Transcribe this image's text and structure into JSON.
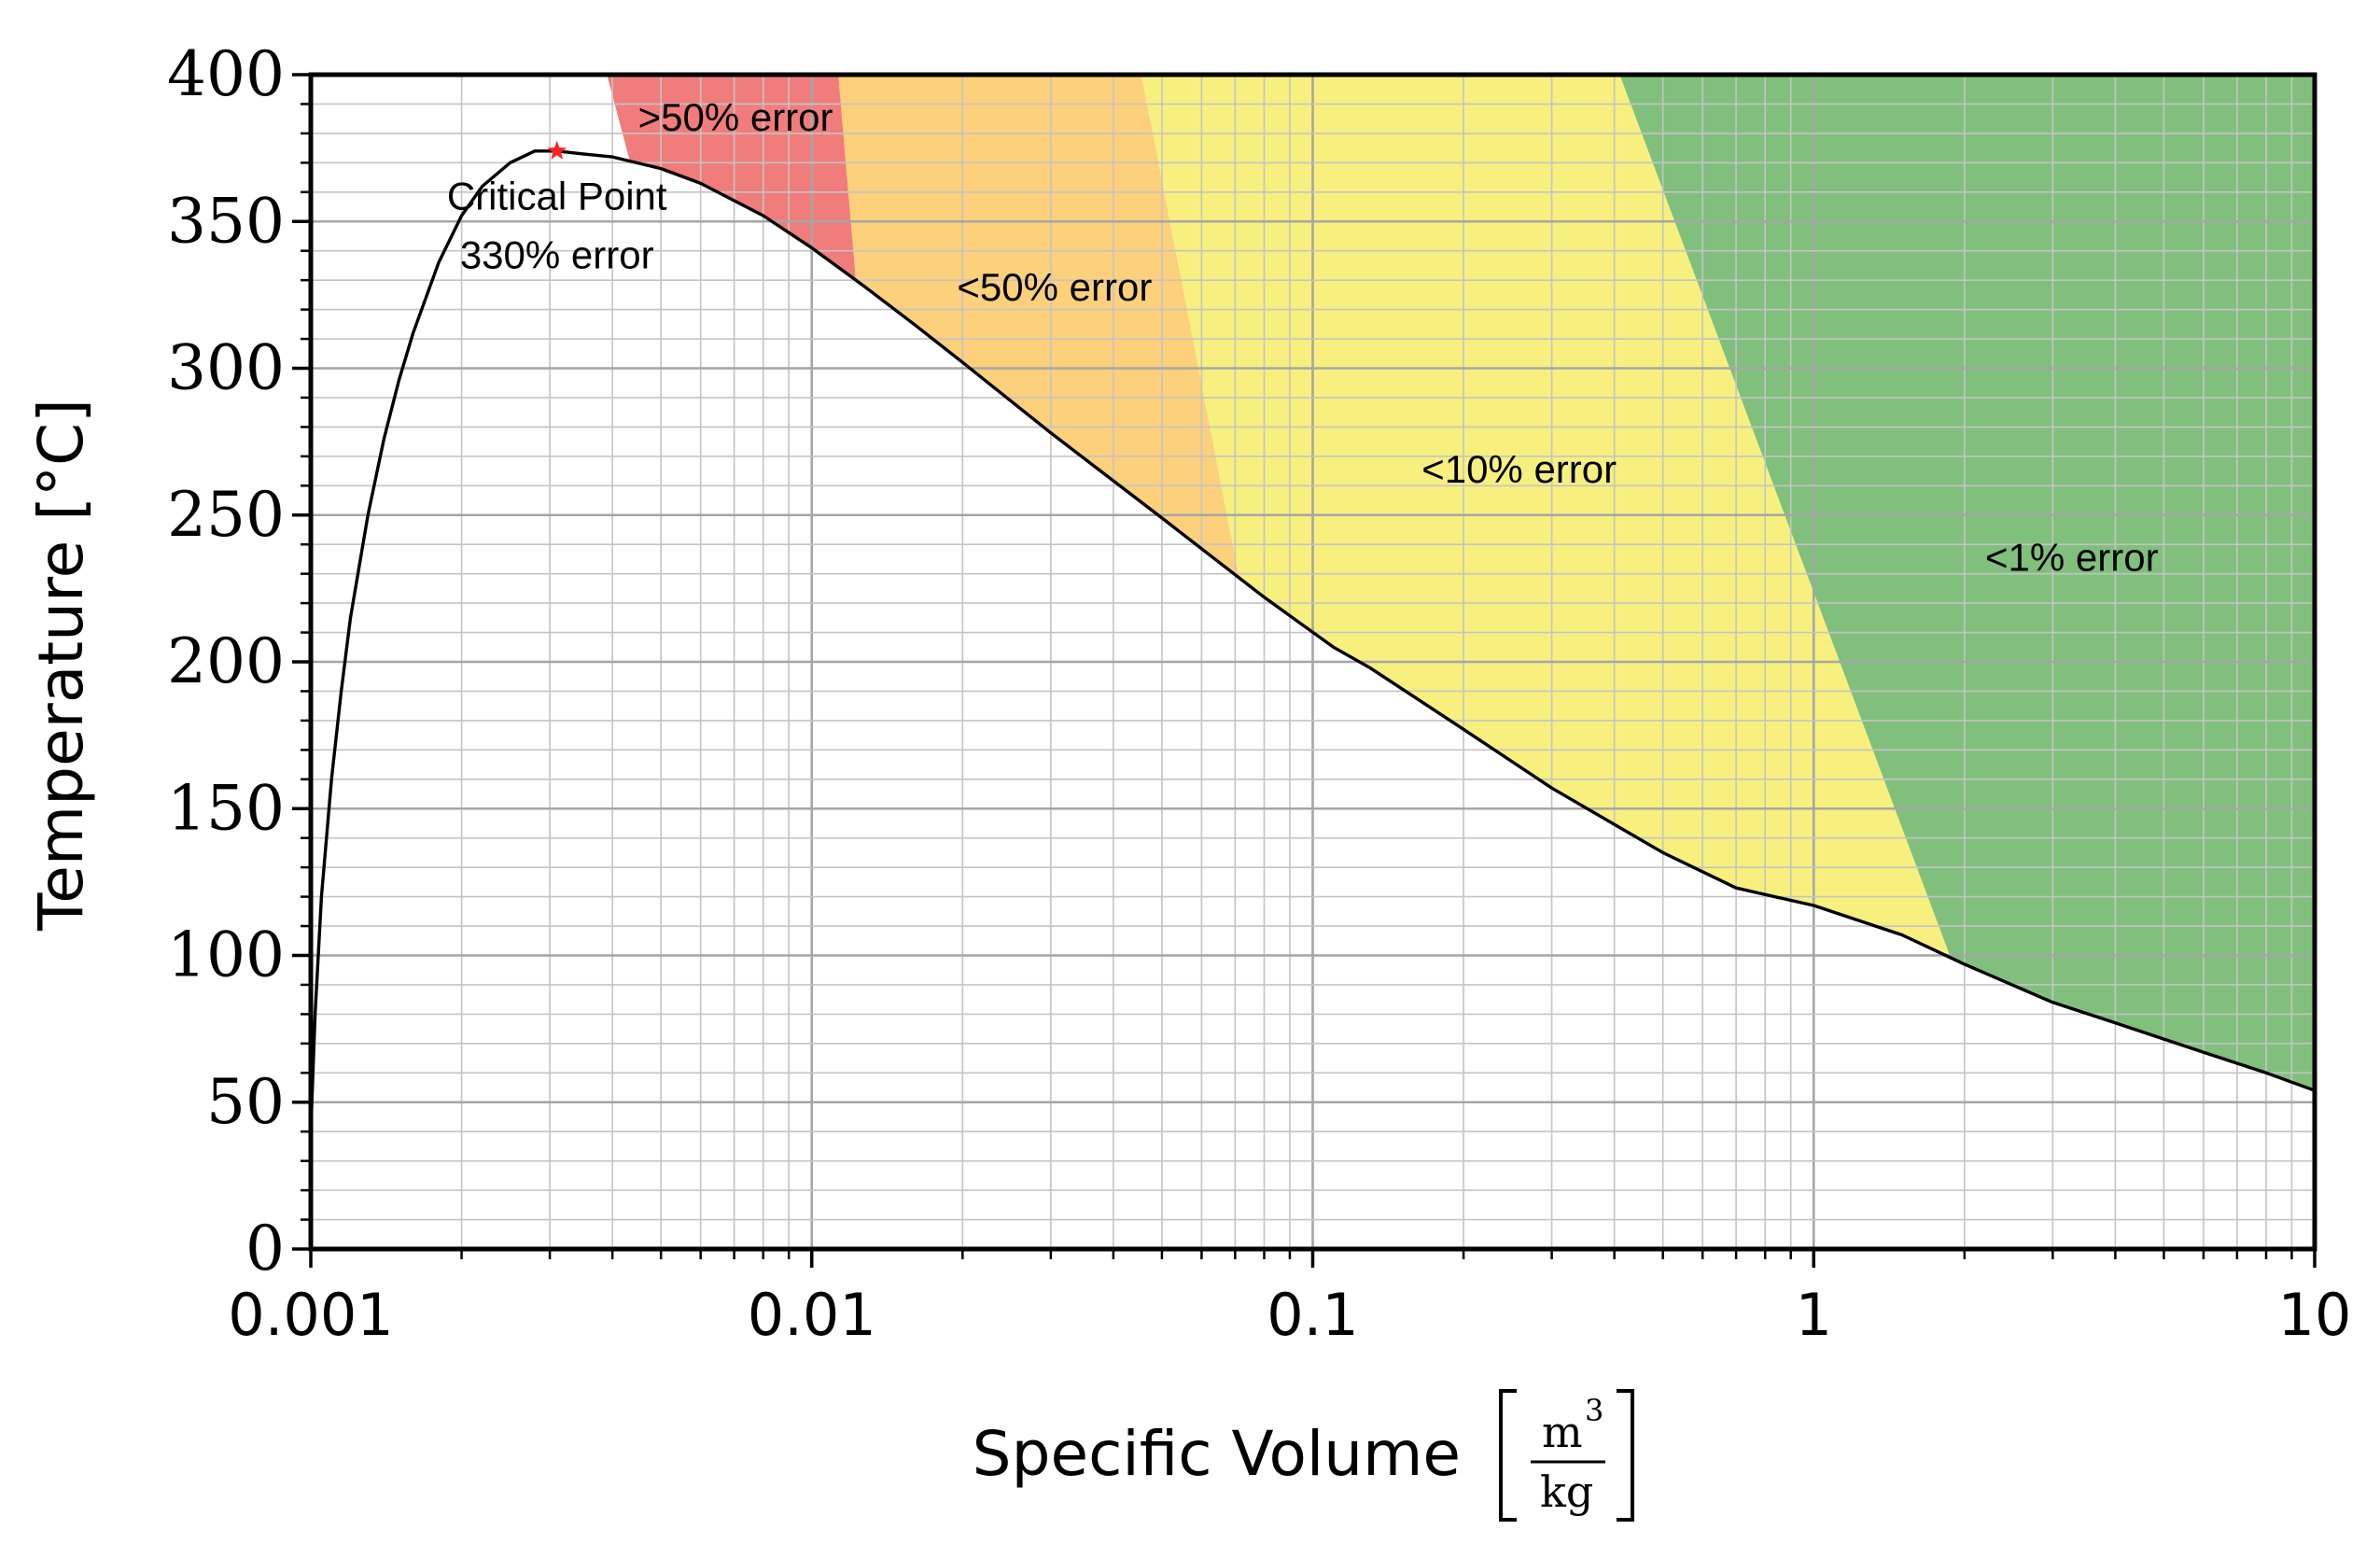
{
  "chart_data": {
    "type": "area",
    "x_scale": "log",
    "xlim": [
      0.001,
      10
    ],
    "ylim": [
      0,
      400
    ],
    "grid": true,
    "xlabel": "Specific Volume",
    "xlabel_unit": {
      "numerator": "m",
      "exponent": "3",
      "denominator": "kg"
    },
    "ylabel": "Temperature [°C]",
    "x_ticks": [
      0.001,
      0.01,
      0.1,
      1,
      10
    ],
    "x_tick_labels": [
      "0.001",
      "0.01",
      "0.1",
      "1",
      "10"
    ],
    "y_ticks": [
      0,
      50,
      100,
      150,
      200,
      250,
      300,
      350,
      400
    ],
    "y_tick_labels": [
      "0",
      "50",
      "100",
      "150",
      "200",
      "250",
      "300",
      "350",
      "400"
    ],
    "saturation_dome": {
      "x": [
        0.001,
        0.00102,
        0.00105,
        0.0011,
        0.00115,
        0.0012,
        0.0013,
        0.0014,
        0.0015,
        0.0016,
        0.0018,
        0.002,
        0.0022,
        0.0025,
        0.0028,
        0.0031,
        0.0035,
        0.004,
        0.005,
        0.006,
        0.008,
        0.01,
        0.0127,
        0.016,
        0.02,
        0.03,
        0.05,
        0.08,
        0.11,
        0.13,
        0.2,
        0.3,
        0.5,
        0.7,
        1.0,
        1.5,
        2.0,
        3.0,
        4.0,
        6.0,
        8.0,
        10.0
      ],
      "y": [
        40,
        80,
        120,
        160,
        190,
        215,
        250,
        276,
        296,
        312,
        336,
        352,
        362,
        370,
        374,
        374,
        373,
        372,
        368,
        363,
        352,
        341,
        328,
        315,
        302,
        278,
        249,
        222,
        205,
        198,
        177,
        157,
        135,
        123,
        117,
        107,
        97,
        84,
        77,
        67,
        60,
        54
      ]
    },
    "regions": [
      {
        "name": ">50% error",
        "color": "#f17c7c",
        "x_left": [
          0.0039,
          0.0163
        ],
        "x_right": [
          0.0113,
          0.0179
        ]
      },
      {
        "name": "<50% error",
        "color": "#fdd07c",
        "x_left": [
          0.0113,
          0.0179
        ],
        "x_right": [
          0.0455,
          0.13
        ]
      },
      {
        "name": "<10% error",
        "color": "#f7f07f",
        "x_left": [
          0.0455,
          0.13
        ],
        "x_right": [
          0.41,
          3.1
        ]
      },
      {
        "name": "<1% error",
        "color": "#80c07c",
        "x_left": [
          0.41,
          3.1
        ],
        "x_right": [
          10,
          10
        ]
      }
    ],
    "critical_point": {
      "x": 0.0031,
      "y": 374,
      "color": "#ff2020"
    },
    "annotations": [
      {
        "text": ">50% error",
        "x": 0.0045,
        "y": 381
      },
      {
        "text": "<50% error",
        "x": 0.0195,
        "y": 323
      },
      {
        "text": "<10% error",
        "x": 0.165,
        "y": 261
      },
      {
        "text": "<1% error",
        "x": 2.2,
        "y": 231
      },
      {
        "text": "Critical Point",
        "x": 0.0031,
        "y": 354
      },
      {
        "text": "330% error",
        "x": 0.0031,
        "y": 334
      }
    ]
  }
}
